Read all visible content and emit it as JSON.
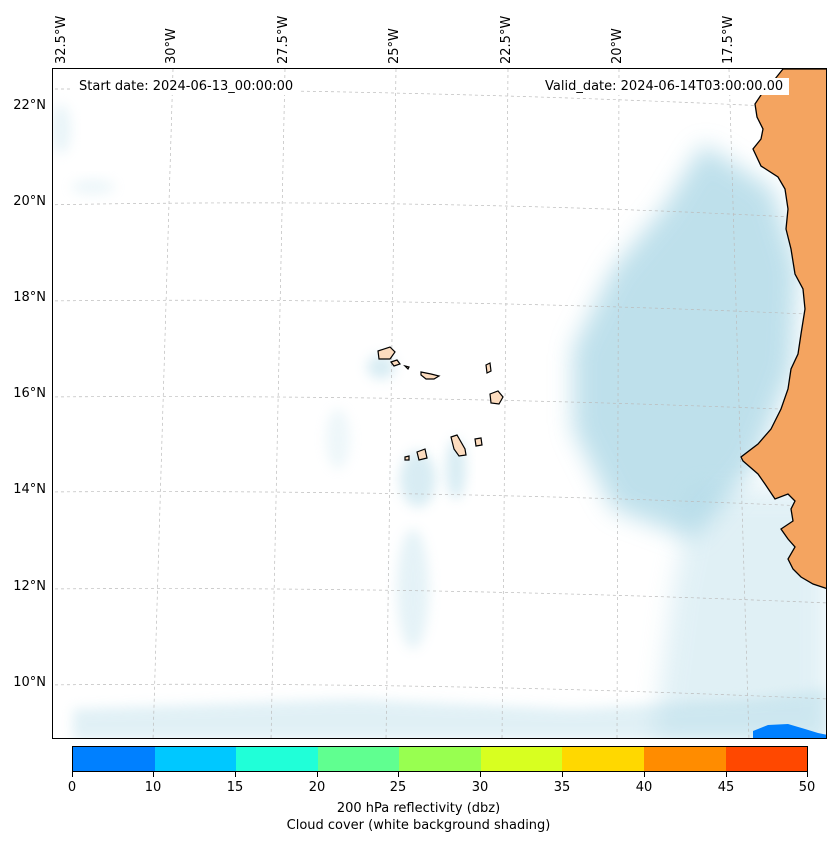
{
  "header": {
    "start_date": "Start date: 2024-06-13_00:00:00",
    "valid_date": "Valid_date: 2024-06-14T03:00:00.00"
  },
  "longitude_labels": [
    "32.5°W",
    "30°W",
    "27.5°W",
    "25°W",
    "22.5°W",
    "20°W",
    "17.5°W"
  ],
  "latitude_labels": [
    "22°N",
    "20°N",
    "18°N",
    "16°N",
    "14°N",
    "12°N",
    "10°N"
  ],
  "colorbar": {
    "tick_labels": [
      "0",
      "10",
      "15",
      "20",
      "25",
      "30",
      "35",
      "40",
      "45",
      "50"
    ],
    "colors": [
      "#0080ff",
      "#00c8ff",
      "#20ffd8",
      "#60ff90",
      "#98ff50",
      "#d8ff20",
      "#ffd800",
      "#ff8c00",
      "#ff4800"
    ],
    "title": "200 hPa reflectivity (dbz)",
    "subtitle": "Cloud cover (white background shading)"
  },
  "colors": {
    "land_africa": "#f4a460",
    "land_islands": "#fcdcbf",
    "cloud": "#a9d6e5",
    "grid": "#bbbbbb"
  }
}
